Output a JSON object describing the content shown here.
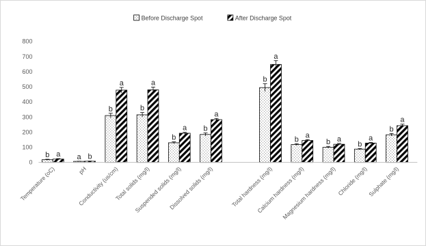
{
  "chart_data": {
    "type": "bar",
    "title": "",
    "xlabel": "",
    "ylabel": "",
    "ylim": [
      0,
      800
    ],
    "yticks": [
      0,
      100,
      200,
      300,
      400,
      500,
      600,
      700,
      800
    ],
    "grid": false,
    "legend_position": "top-center",
    "groups": [
      [
        "Temperature (oC)",
        "pH",
        "Conductivity (us/cm)",
        "Total solids (mg/l)",
        "Suspended solids (mg/l)",
        "Dissolved solids (mg/l)"
      ],
      [
        "Total hardness (mg/l)",
        "Calcium hardness (mg/l)",
        "Magnesium hardness (mg/l)",
        "Chloride (mg/l)",
        "Sulphate (mg/l)"
      ]
    ],
    "categories": [
      "Temperature (oC)",
      "pH",
      "Conductivity (us/cm)",
      "Total solids (mg/l)",
      "Suspended solids (mg/l)",
      "Dissolved solids (mg/l)",
      "Total hardness (mg/l)",
      "Calcium hardness (mg/l)",
      "Magnesium hardness (mg/l)",
      "Chloride (mg/l)",
      "Sulphate (mg/l)"
    ],
    "series": [
      {
        "name": "Before Discharge Spot",
        "pattern": "dots",
        "values": [
          18,
          7,
          310,
          315,
          130,
          185,
          495,
          118,
          100,
          88,
          183
        ],
        "errors": [
          3,
          1,
          15,
          15,
          6,
          10,
          25,
          6,
          6,
          4,
          8
        ],
        "labels": [
          "b",
          "a",
          "b",
          "b",
          "b",
          "b",
          "b",
          "b",
          "b",
          "b",
          "b"
        ]
      },
      {
        "name": "After Discharge Spot",
        "pattern": "diagonal",
        "values": [
          22,
          8,
          478,
          480,
          193,
          283,
          648,
          145,
          120,
          128,
          243
        ],
        "errors": [
          3,
          1,
          18,
          18,
          6,
          8,
          25,
          6,
          6,
          4,
          10
        ],
        "labels": [
          "a",
          "b",
          "a",
          "a",
          "a",
          "a",
          "a",
          "a",
          "a",
          "a",
          "a"
        ]
      }
    ]
  }
}
